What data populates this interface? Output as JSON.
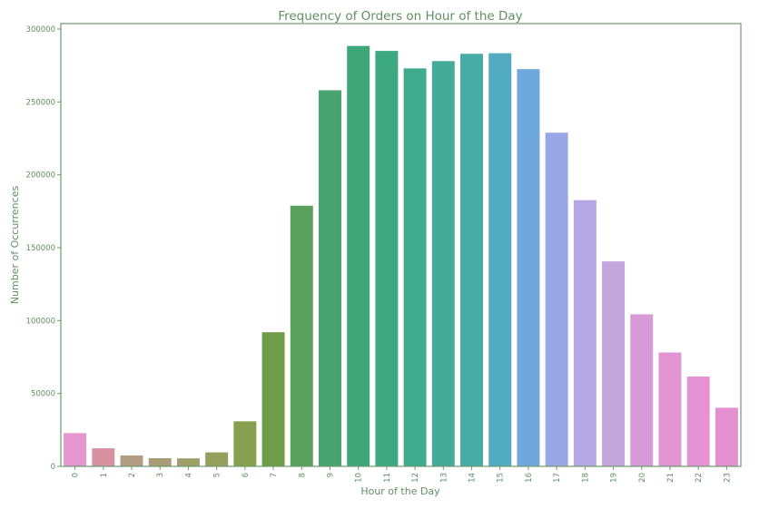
{
  "chart_data": {
    "type": "bar",
    "title": "Frequency of Orders on Hour of the Day",
    "xlabel": "Hour of the Day",
    "ylabel": "Number of Occurrences",
    "categories": [
      "0",
      "1",
      "2",
      "3",
      "4",
      "5",
      "6",
      "7",
      "8",
      "9",
      "10",
      "11",
      "12",
      "13",
      "14",
      "15",
      "16",
      "17",
      "18",
      "19",
      "20",
      "21",
      "22",
      "23"
    ],
    "values": [
      22800,
      12400,
      7500,
      5600,
      5500,
      9600,
      30900,
      92000,
      178800,
      258000,
      288400,
      285000,
      273000,
      278000,
      283000,
      283400,
      272500,
      228900,
      182600,
      140600,
      104300,
      78100,
      61600,
      40200
    ],
    "colors": [
      "#e497cf",
      "#d8919f",
      "#b39c84",
      "#a99c75",
      "#a19f68",
      "#96a05c",
      "#87a04f",
      "#6f9c48",
      "#59a05a",
      "#47a46e",
      "#3ea779",
      "#3ca983",
      "#40aa8c",
      "#45ab98",
      "#48aba5",
      "#4fabbd",
      "#6fa8dd",
      "#9aa7e6",
      "#b4a7e4",
      "#c5a5de",
      "#d79ad6",
      "#e294d4",
      "#e492d2",
      "#e48fd0"
    ],
    "yticks": [
      0,
      50000,
      100000,
      150000,
      200000,
      250000,
      300000
    ],
    "ylim": [
      0,
      300000
    ],
    "grid": false
  }
}
